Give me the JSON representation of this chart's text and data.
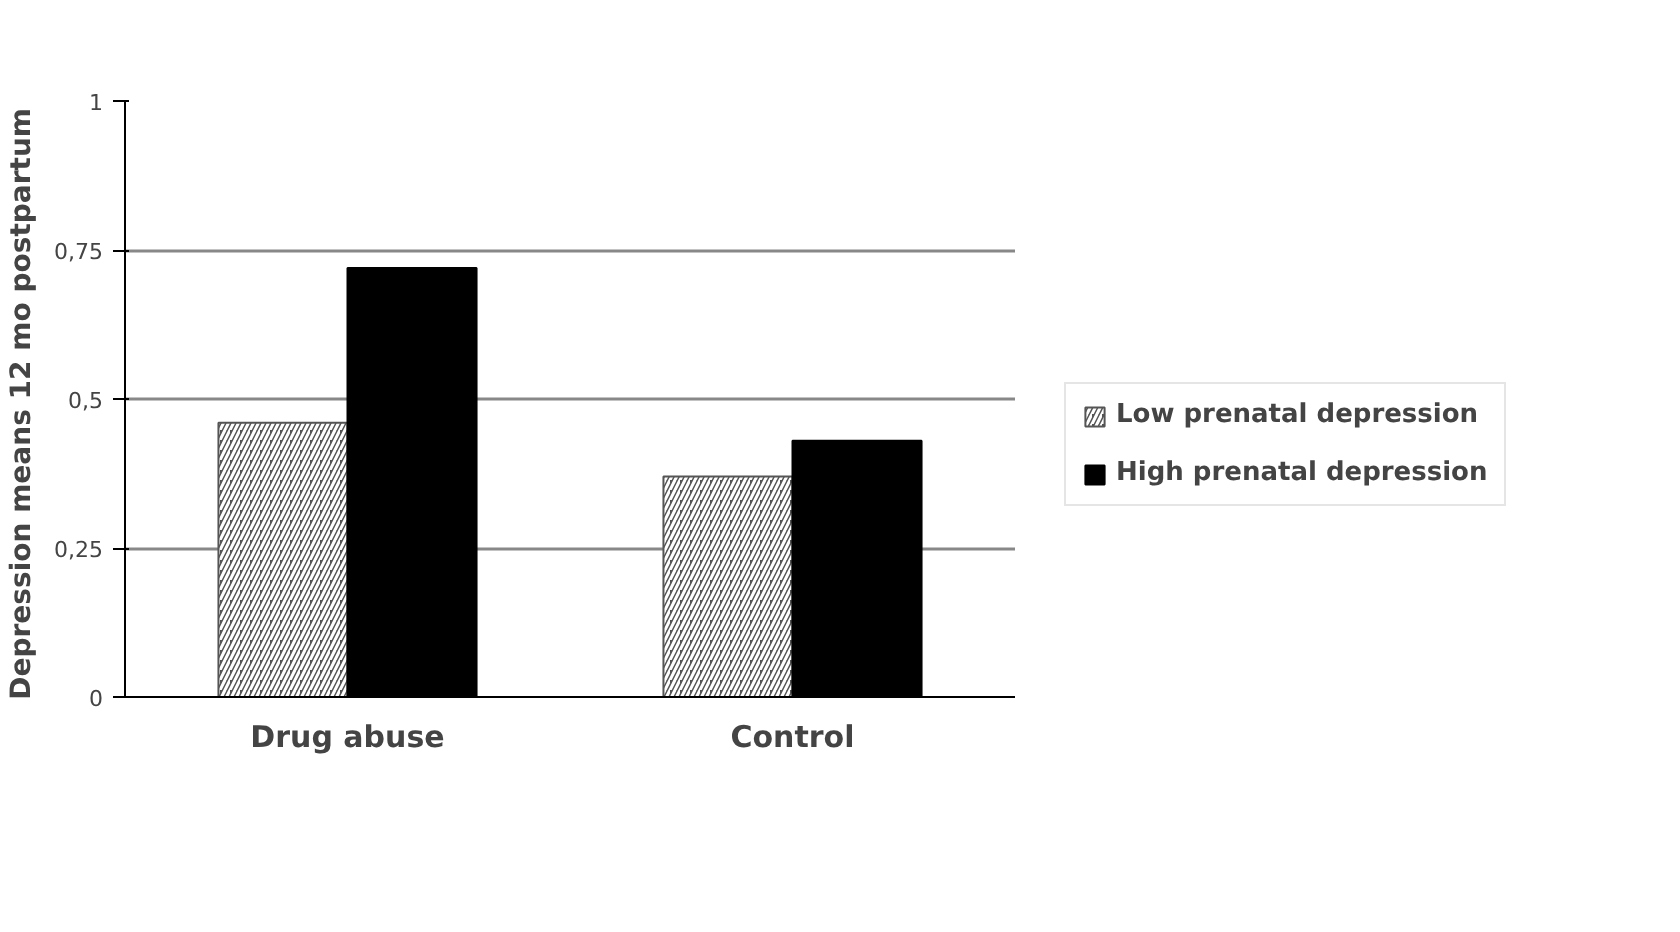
{
  "chart_data": {
    "type": "bar",
    "ylabel": "Depression  means 12 mo postpartum",
    "categories": [
      "Drug abuse",
      "Control"
    ],
    "series": [
      {
        "name": "Low prenatal depression",
        "color": "#555555",
        "values": [
          0.46,
          0.37
        ]
      },
      {
        "name": "High prenatal depression",
        "color": "#000000",
        "values": [
          0.72,
          0.43
        ]
      }
    ],
    "ylim": [
      0,
      1
    ],
    "yticks": [
      0,
      {
        "value": 0.25,
        "label": "0,25"
      },
      {
        "value": 0.5,
        "label": "0,5"
      },
      {
        "value": 0.75,
        "label": "0,75"
      },
      1
    ],
    "grid": "y",
    "legend": "right"
  }
}
